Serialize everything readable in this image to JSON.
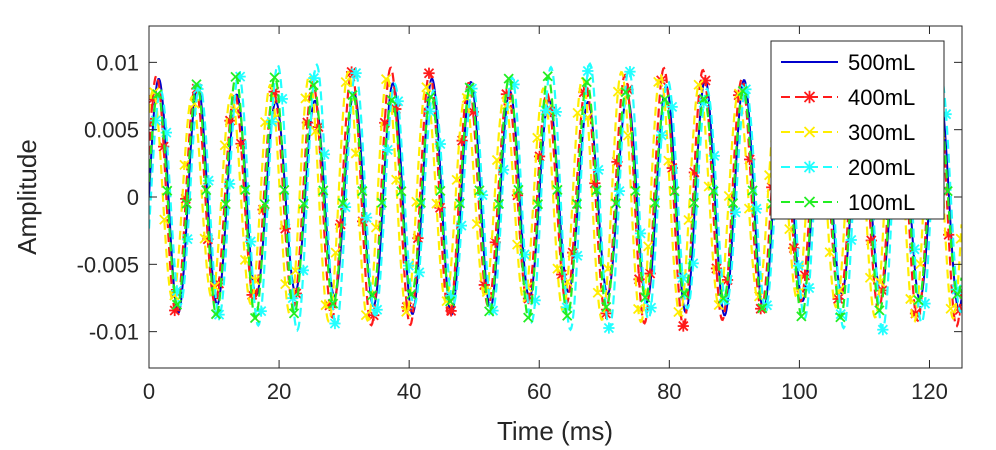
{
  "chart_data": {
    "type": "line",
    "title": "",
    "xlabel": "Time (ms)",
    "ylabel": "Amplitude",
    "xlim": [
      0,
      125
    ],
    "ylim": [
      -0.0127,
      0.0127
    ],
    "xticks": [
      0,
      20,
      40,
      60,
      80,
      100,
      120
    ],
    "xtick_labels": [
      "0",
      "20",
      "40",
      "60",
      "80",
      "100",
      "120"
    ],
    "yticks": [
      0.01,
      0.005,
      0,
      -0.005,
      -0.01
    ],
    "ytick_labels": [
      "0.01",
      "0.005",
      "0",
      "-0.005",
      "-0.01"
    ],
    "grid": false,
    "legend_position": "top-right",
    "period_ms": 6.0,
    "series": [
      {
        "name": "500mL",
        "color": "#0000cc",
        "line_style": "solid",
        "marker": "none",
        "amplitude": 0.0088,
        "phase": 0.0,
        "marker_step_ms": 0
      },
      {
        "name": "400mL",
        "color": "#ff1a1a",
        "line_style": "dashed",
        "marker": "star",
        "amplitude": 0.0096,
        "phase": 0.35,
        "marker_step_ms": 1.7
      },
      {
        "name": "300mL",
        "color": "#ffee00",
        "line_style": "dashed",
        "marker": "x",
        "amplitude": 0.0093,
        "phase": 0.9,
        "marker_step_ms": 1.55
      },
      {
        "name": "200mL",
        "color": "#22ffff",
        "line_style": "dashed",
        "marker": "star",
        "amplitude": 0.0099,
        "phase": -0.3,
        "marker_step_ms": 1.62
      },
      {
        "name": "100mL",
        "color": "#22ee22",
        "line_style": "dashed",
        "marker": "x",
        "amplitude": 0.009,
        "phase": 0.15,
        "marker_step_ms": 1.5
      }
    ]
  }
}
